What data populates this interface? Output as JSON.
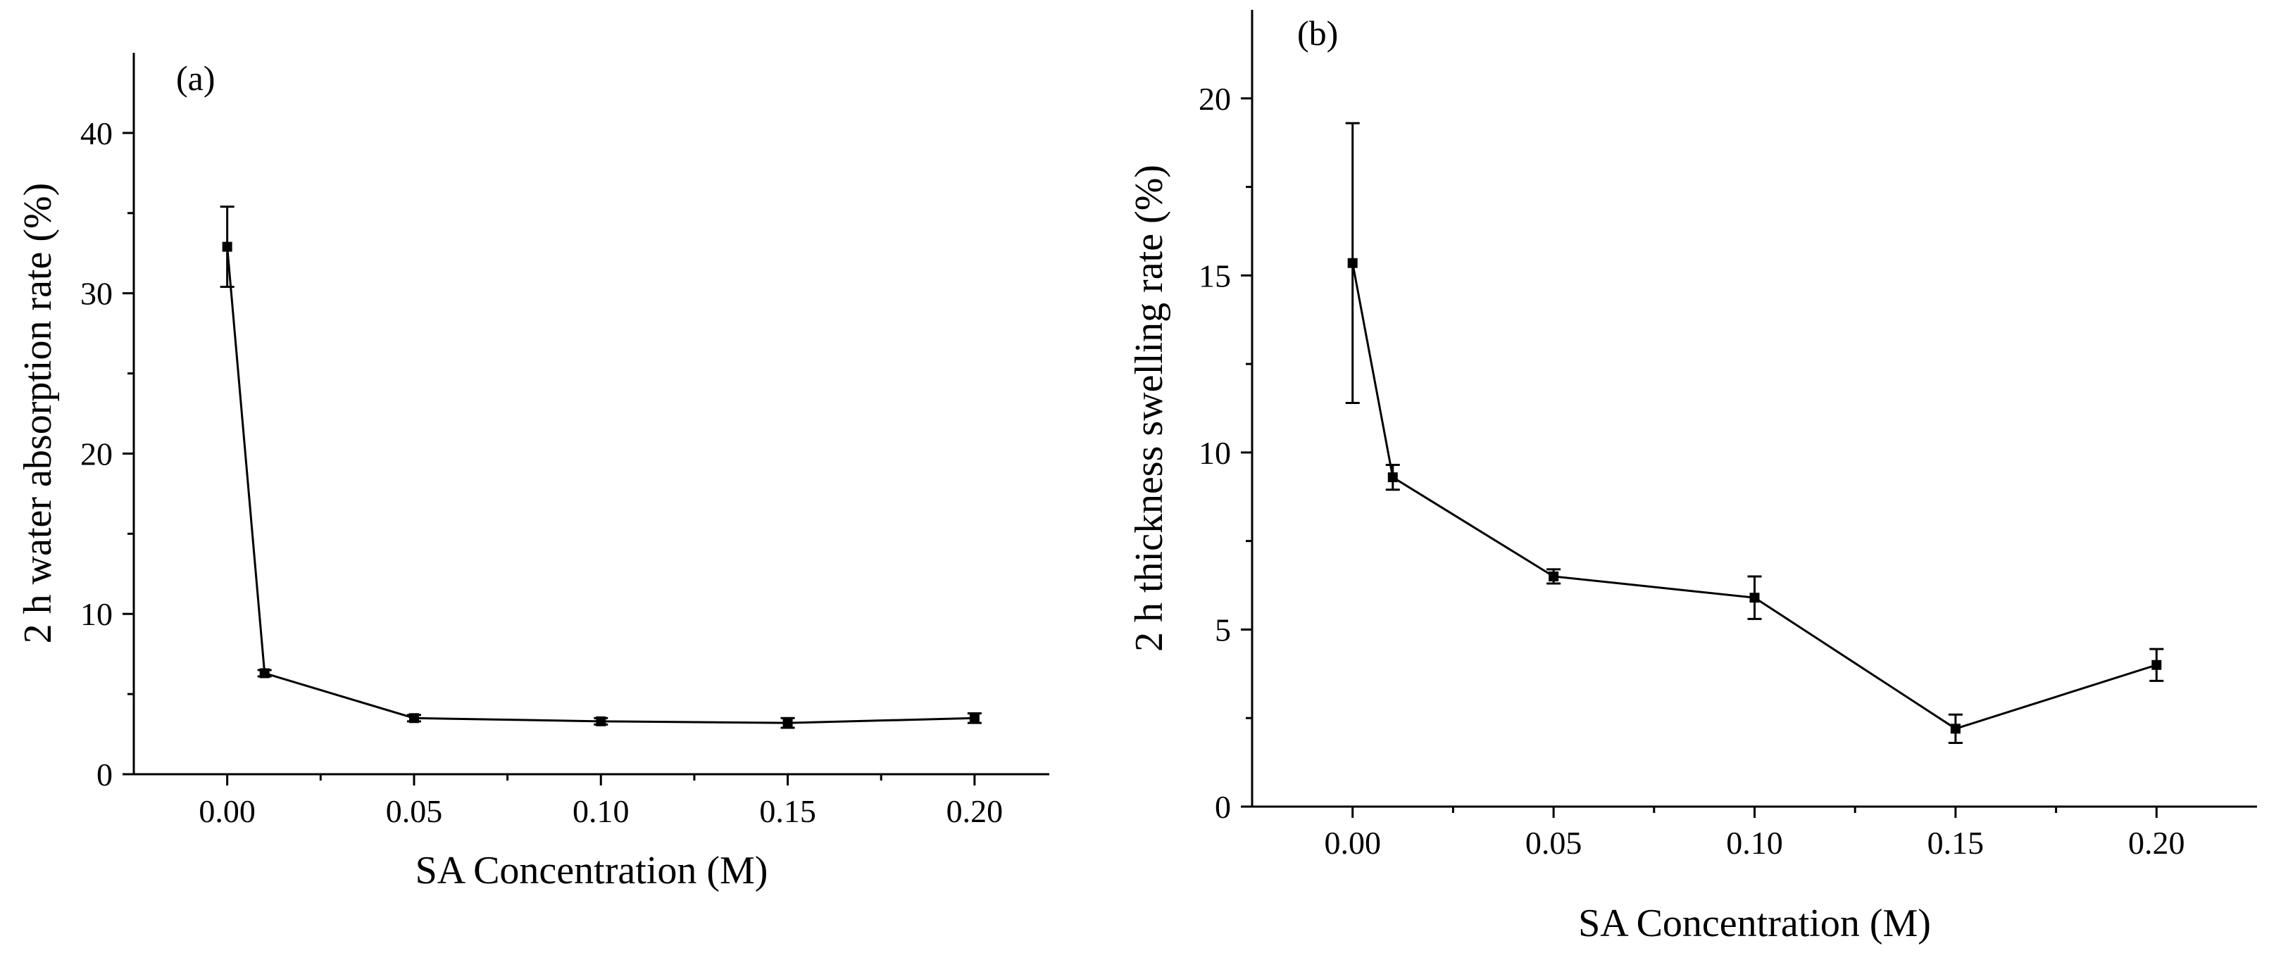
{
  "chart_data": [
    {
      "type": "line",
      "panel_label": "(a)",
      "xlabel": "SA Concentration (M)",
      "ylabel": "2 h water absorption rate (%)",
      "xlim": [
        -0.025,
        0.22
      ],
      "ylim": [
        0,
        45
      ],
      "xticks": [
        0.0,
        0.05,
        0.1,
        0.15,
        0.2
      ],
      "xtick_labels": [
        "0.00",
        "0.05",
        "0.10",
        "0.15",
        "0.20"
      ],
      "yticks": [
        0,
        10,
        20,
        30,
        40
      ],
      "ytick_labels": [
        "0",
        "10",
        "20",
        "30",
        "40"
      ],
      "series": [
        {
          "name": "water absorption",
          "x": [
            0.0,
            0.01,
            0.05,
            0.1,
            0.15,
            0.2
          ],
          "y": [
            32.9,
            6.3,
            3.5,
            3.3,
            3.2,
            3.5
          ],
          "err": [
            2.5,
            0.2,
            0.2,
            0.2,
            0.3,
            0.3
          ]
        }
      ]
    },
    {
      "type": "line",
      "panel_label": "(b)",
      "xlabel": "SA Concentration (M)",
      "ylabel": "2 h thickness swelling rate (%)",
      "xlim": [
        -0.025,
        0.225
      ],
      "ylim": [
        0,
        22.5
      ],
      "xticks": [
        0.0,
        0.05,
        0.1,
        0.15,
        0.2
      ],
      "xtick_labels": [
        "0.00",
        "0.05",
        "0.10",
        "0.15",
        "0.20"
      ],
      "yticks": [
        0,
        5,
        10,
        15,
        20
      ],
      "ytick_labels": [
        "0",
        "5",
        "10",
        "15",
        "20"
      ],
      "series": [
        {
          "name": "thickness swelling",
          "x": [
            0.0,
            0.01,
            0.05,
            0.1,
            0.15,
            0.2
          ],
          "y": [
            15.35,
            9.3,
            6.5,
            5.9,
            2.2,
            4.0
          ],
          "err": [
            3.95,
            0.35,
            0.2,
            0.6,
            0.4,
            0.45
          ]
        }
      ]
    }
  ]
}
